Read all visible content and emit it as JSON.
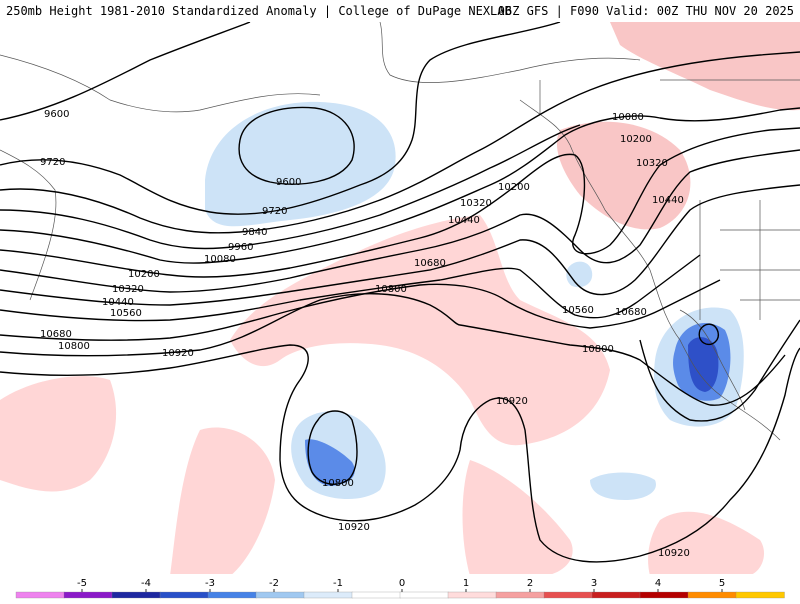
{
  "header": {
    "title_left": "250mb Height 1981-2010 Standardized Anomaly | College of DuPage NEXLAB",
    "title_right": "06Z GFS | F090 Valid: 00Z THU NOV 20 2025"
  },
  "contour_labels": [
    "9600",
    "9720",
    "9600",
    "9720",
    "9840",
    "9960",
    "10080",
    "10200",
    "10320",
    "10440",
    "10560",
    "10680",
    "10800",
    "10920",
    "10080",
    "10200",
    "10320",
    "10440",
    "10200",
    "10320",
    "10440",
    "10680",
    "10800",
    "10560",
    "10680",
    "10800",
    "10920",
    "10800",
    "10920",
    "10920"
  ],
  "legend": {
    "ticks": [
      "-5",
      "-4",
      "-3",
      "-2",
      "-1",
      "0",
      "1",
      "2",
      "3",
      "4",
      "5"
    ],
    "colors": [
      "#ee82ee",
      "#8b1ac8",
      "#1e28a0",
      "#2850c8",
      "#4682e6",
      "#a0c8f0",
      "#dcebfa",
      "#ffffff",
      "#ffffff",
      "#ffdcdc",
      "#f5a0a0",
      "#e65050",
      "#c81e1e",
      "#b40000",
      "#ff8c00",
      "#ffc800"
    ]
  }
}
